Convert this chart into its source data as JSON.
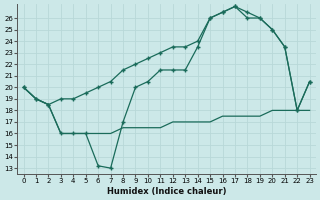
{
  "bg_color": "#cce8e8",
  "grid_color": "#b8d8d8",
  "line_color": "#1a6b5a",
  "xlabel": "Humidex (Indice chaleur)",
  "xlim": [
    -0.5,
    23.5
  ],
  "ylim": [
    12.5,
    27.2
  ],
  "xticks": [
    0,
    1,
    2,
    3,
    4,
    5,
    6,
    7,
    8,
    9,
    10,
    11,
    12,
    13,
    14,
    15,
    16,
    17,
    18,
    19,
    20,
    21,
    22,
    23
  ],
  "yticks": [
    13,
    14,
    15,
    16,
    17,
    18,
    19,
    20,
    21,
    22,
    23,
    24,
    25,
    26
  ],
  "line1_y": [
    20.0,
    19.0,
    18.5,
    19.0,
    19.0,
    19.5,
    20.0,
    20.5,
    21.5,
    22.0,
    22.5,
    23.0,
    23.5,
    23.5,
    24.0,
    26.0,
    26.5,
    27.0,
    26.0,
    26.0,
    25.0,
    23.5,
    18.0,
    20.5
  ],
  "line2_y": [
    20.0,
    19.0,
    18.5,
    16.0,
    16.0,
    16.0,
    13.2,
    13.0,
    17.0,
    20.0,
    20.5,
    21.5,
    21.5,
    21.5,
    23.5,
    26.0,
    26.5,
    27.0,
    26.5,
    26.0,
    25.0,
    23.5,
    18.0,
    20.5
  ],
  "line3_y": [
    20.0,
    19.0,
    18.5,
    16.0,
    16.0,
    16.0,
    16.0,
    16.0,
    16.5,
    16.5,
    16.5,
    16.5,
    17.0,
    17.0,
    17.0,
    17.0,
    17.5,
    17.5,
    17.5,
    17.5,
    18.0,
    18.0,
    18.0,
    18.0
  ]
}
